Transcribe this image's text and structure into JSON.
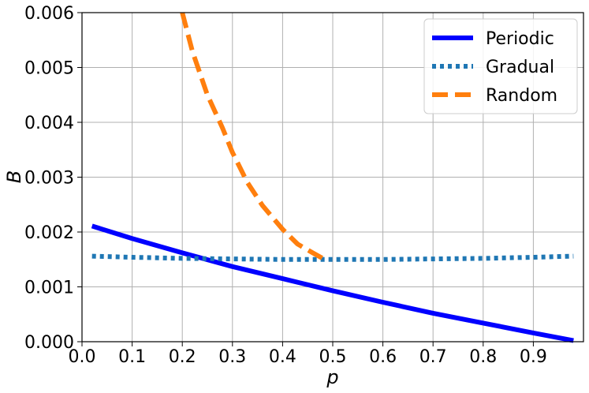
{
  "chart_data": {
    "type": "line",
    "title": "",
    "xlabel": "p",
    "ylabel": "B",
    "xlim": [
      0.0,
      1.0
    ],
    "ylim": [
      0.0,
      0.006
    ],
    "x_ticks": [
      "0.0",
      "0.1",
      "0.2",
      "0.3",
      "0.4",
      "0.5",
      "0.6",
      "0.7",
      "0.8",
      "0.9"
    ],
    "y_ticks": [
      "0.000",
      "0.001",
      "0.002",
      "0.003",
      "0.004",
      "0.005",
      "0.006"
    ],
    "grid": true,
    "legend_position": "top-right",
    "series": [
      {
        "name": "Periodic",
        "color": "#0000ff",
        "style": "solid",
        "x": [
          0.02,
          0.1,
          0.2,
          0.3,
          0.4,
          0.5,
          0.6,
          0.7,
          0.8,
          0.9,
          0.98
        ],
        "y": [
          0.00211,
          0.00188,
          0.00162,
          0.00137,
          0.00115,
          0.00093,
          0.00072,
          0.00052,
          0.00034,
          0.00016,
          2e-05
        ]
      },
      {
        "name": "Gradual",
        "color": "#1f77b4",
        "style": "dotted",
        "x": [
          0.02,
          0.1,
          0.2,
          0.3,
          0.4,
          0.5,
          0.6,
          0.7,
          0.8,
          0.9,
          0.98
        ],
        "y": [
          0.00156,
          0.00154,
          0.00152,
          0.00151,
          0.0015,
          0.0015,
          0.0015,
          0.00151,
          0.00152,
          0.00154,
          0.00156
        ]
      },
      {
        "name": "Random",
        "color": "#ff7f0e",
        "style": "dashed",
        "x": [
          0.2,
          0.22,
          0.25,
          0.28,
          0.3,
          0.33,
          0.36,
          0.4,
          0.43,
          0.46,
          0.48
        ],
        "y": [
          0.006,
          0.0053,
          0.0045,
          0.0039,
          0.00345,
          0.0029,
          0.00248,
          0.00205,
          0.00178,
          0.00162,
          0.00152
        ]
      }
    ]
  }
}
